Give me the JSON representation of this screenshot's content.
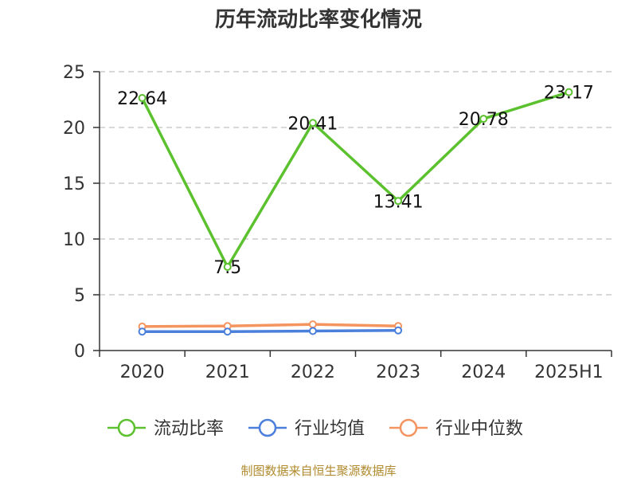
{
  "chart_data": {
    "type": "line",
    "title": "历年流动比率变化情况",
    "categories": [
      "2020",
      "2021",
      "2022",
      "2023",
      "2024",
      "2025H1"
    ],
    "ylim": [
      0,
      25
    ],
    "yticks": [
      "0",
      "5",
      "10",
      "15",
      "20",
      "25"
    ],
    "grid": true,
    "legend_position": "bottom",
    "series": [
      {
        "name": "流动比率",
        "color": "#5cc12e",
        "values": [
          22.64,
          7.5,
          20.41,
          13.41,
          20.78,
          23.17
        ],
        "labels": [
          "22.64",
          "7.5",
          "20.41",
          "13.41",
          "20.78",
          "23.17"
        ]
      },
      {
        "name": "行业均值",
        "color": "#4a7fdc",
        "values": [
          1.7,
          1.7,
          1.75,
          1.8,
          null,
          null
        ]
      },
      {
        "name": "行业中位数",
        "color": "#f4945f",
        "values": [
          2.15,
          2.2,
          2.35,
          2.2,
          null,
          null
        ]
      }
    ]
  },
  "source_text": "制图数据来自恒生聚源数据库"
}
